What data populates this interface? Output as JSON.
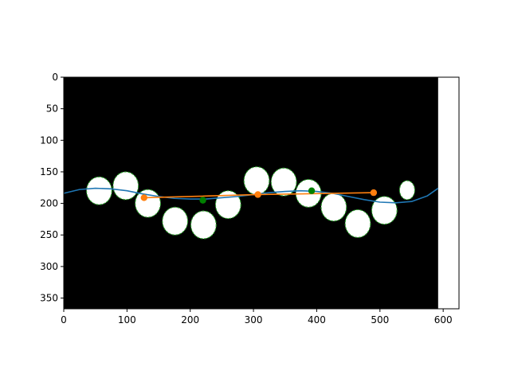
{
  "chart_data": {
    "type": "scatter",
    "title": "",
    "xlabel": "",
    "ylabel": "",
    "xlim": [
      0,
      625
    ],
    "ylim": [
      367,
      0
    ],
    "image_extent": {
      "x": [
        0,
        592
      ],
      "y": [
        0,
        367
      ]
    },
    "xticks": [
      0,
      100,
      200,
      300,
      400,
      500,
      600
    ],
    "yticks": [
      0,
      50,
      100,
      150,
      200,
      250,
      300,
      350
    ],
    "grid": false,
    "legend": "none",
    "background_image": "black image with white elliptical blobs outlined in green",
    "blobs": [
      {
        "cx": 56,
        "cy": 180,
        "rx": 20,
        "ry": 22
      },
      {
        "cx": 98,
        "cy": 172,
        "rx": 20,
        "ry": 22
      },
      {
        "cx": 133,
        "cy": 200,
        "rx": 20,
        "ry": 22
      },
      {
        "cx": 176,
        "cy": 228,
        "rx": 20,
        "ry": 22
      },
      {
        "cx": 221,
        "cy": 234,
        "rx": 20,
        "ry": 22
      },
      {
        "cx": 260,
        "cy": 202,
        "rx": 20,
        "ry": 22
      },
      {
        "cx": 305,
        "cy": 164,
        "rx": 20,
        "ry": 22
      },
      {
        "cx": 348,
        "cy": 166,
        "rx": 20,
        "ry": 22
      },
      {
        "cx": 387,
        "cy": 184,
        "rx": 20,
        "ry": 22
      },
      {
        "cx": 427,
        "cy": 206,
        "rx": 20,
        "ry": 22
      },
      {
        "cx": 465,
        "cy": 232,
        "rx": 20,
        "ry": 22
      },
      {
        "cx": 507,
        "cy": 211,
        "rx": 20,
        "ry": 22
      },
      {
        "cx": 543,
        "cy": 179,
        "rx": 12,
        "ry": 15
      }
    ],
    "series": [
      {
        "type": "line",
        "color": "#1f77b4",
        "x": [
          0,
          25,
          50,
          75,
          100,
          125,
          150,
          175,
          200,
          225,
          250,
          275,
          300,
          325,
          350,
          375,
          400,
          425,
          450,
          475,
          500,
          525,
          550,
          575,
          592
        ],
        "y": [
          184,
          178,
          176,
          177,
          180,
          185,
          189,
          192,
          193,
          193,
          191,
          189,
          186,
          183,
          181,
          180,
          181,
          184,
          189,
          194,
          198,
          199,
          197,
          188,
          176
        ]
      },
      {
        "type": "line+markers",
        "color": "#ff7f0e",
        "x": [
          127,
          307,
          490
        ],
        "y": [
          191,
          186,
          183
        ]
      },
      {
        "type": "markers",
        "color": "#008000",
        "x": [
          220,
          392
        ],
        "y": [
          195,
          180
        ]
      }
    ]
  }
}
